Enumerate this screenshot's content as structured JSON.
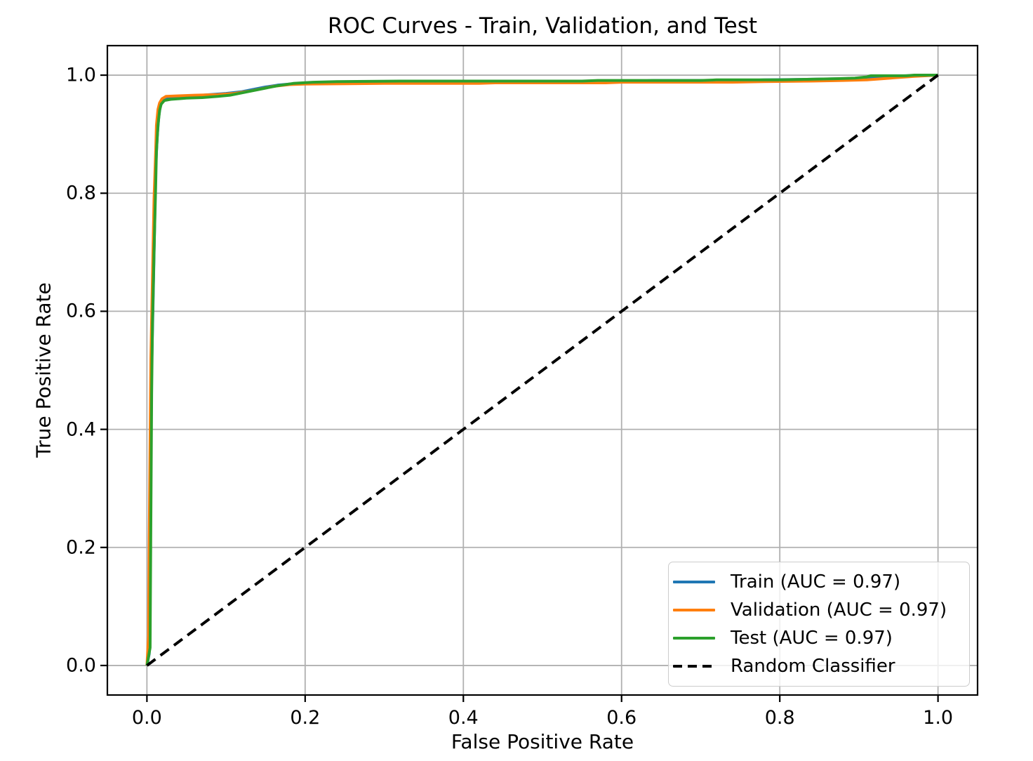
{
  "figure": {
    "background": "#ffffff",
    "title": "ROC Curves - Train, Validation, and Test"
  },
  "chart_data": {
    "type": "line",
    "title": "ROC Curves - Train, Validation, and Test",
    "xlabel": "False Positive Rate",
    "ylabel": "True Positive Rate",
    "xlim": [
      -0.05,
      1.05
    ],
    "ylim": [
      -0.05,
      1.05
    ],
    "grid": true,
    "grid_color": "#b0b0b0",
    "spine_color": "#000000",
    "tick_color": "#000000",
    "legend_position": "lower right",
    "x_ticks": [
      {
        "value": 0.0,
        "label": "0.0"
      },
      {
        "value": 0.2,
        "label": "0.2"
      },
      {
        "value": 0.4,
        "label": "0.4"
      },
      {
        "value": 0.6,
        "label": "0.6"
      },
      {
        "value": 0.8,
        "label": "0.8"
      },
      {
        "value": 1.0,
        "label": "1.0"
      }
    ],
    "y_ticks": [
      {
        "value": 0.0,
        "label": "0.0"
      },
      {
        "value": 0.2,
        "label": "0.2"
      },
      {
        "value": 0.4,
        "label": "0.4"
      },
      {
        "value": 0.6,
        "label": "0.6"
      },
      {
        "value": 0.8,
        "label": "0.8"
      },
      {
        "value": 1.0,
        "label": "1.0"
      }
    ],
    "series": [
      {
        "key": "train",
        "name": "Train (AUC = 0.97)",
        "auc": "0.97",
        "color": "#1f77b4",
        "style": "solid",
        "points": [
          [
            0,
            0
          ],
          [
            0.003,
            0.02
          ],
          [
            0.004,
            0.18
          ],
          [
            0.005,
            0.36
          ],
          [
            0.006,
            0.5
          ],
          [
            0.008,
            0.63
          ],
          [
            0.01,
            0.76
          ],
          [
            0.011,
            0.84
          ],
          [
            0.013,
            0.895
          ],
          [
            0.015,
            0.93
          ],
          [
            0.017,
            0.948
          ],
          [
            0.02,
            0.956
          ],
          [
            0.026,
            0.96
          ],
          [
            0.04,
            0.963
          ],
          [
            0.06,
            0.965
          ],
          [
            0.08,
            0.967
          ],
          [
            0.1,
            0.969
          ],
          [
            0.12,
            0.972
          ],
          [
            0.135,
            0.976
          ],
          [
            0.15,
            0.98
          ],
          [
            0.165,
            0.983
          ],
          [
            0.18,
            0.985
          ],
          [
            0.2,
            0.987
          ],
          [
            0.27,
            0.988
          ],
          [
            0.35,
            0.988
          ],
          [
            0.35,
            0.989
          ],
          [
            0.48,
            0.989
          ],
          [
            0.5,
            0.99
          ],
          [
            0.62,
            0.99
          ],
          [
            0.64,
            0.991
          ],
          [
            0.76,
            0.991
          ],
          [
            0.78,
            0.992
          ],
          [
            0.84,
            0.993
          ],
          [
            0.88,
            0.994
          ],
          [
            0.9,
            0.995
          ],
          [
            0.92,
            0.996
          ],
          [
            0.94,
            0.998
          ],
          [
            0.96,
            0.999
          ],
          [
            1,
            1
          ]
        ]
      },
      {
        "key": "validation",
        "name": "Validation (AUC = 0.97)",
        "auc": "0.97",
        "color": "#ff7f0e",
        "style": "solid",
        "points": [
          [
            0,
            0
          ],
          [
            0.002,
            0.05
          ],
          [
            0.003,
            0.22
          ],
          [
            0.004,
            0.38
          ],
          [
            0.005,
            0.52
          ],
          [
            0.007,
            0.66
          ],
          [
            0.009,
            0.79
          ],
          [
            0.011,
            0.87
          ],
          [
            0.012,
            0.915
          ],
          [
            0.014,
            0.942
          ],
          [
            0.016,
            0.953
          ],
          [
            0.019,
            0.96
          ],
          [
            0.024,
            0.964
          ],
          [
            0.04,
            0.965
          ],
          [
            0.06,
            0.966
          ],
          [
            0.09,
            0.967
          ],
          [
            0.11,
            0.969
          ],
          [
            0.13,
            0.973
          ],
          [
            0.145,
            0.977
          ],
          [
            0.16,
            0.981
          ],
          [
            0.18,
            0.984
          ],
          [
            0.2,
            0.985
          ],
          [
            0.3,
            0.986
          ],
          [
            0.42,
            0.986
          ],
          [
            0.44,
            0.987
          ],
          [
            0.58,
            0.987
          ],
          [
            0.6,
            0.988
          ],
          [
            0.74,
            0.988
          ],
          [
            0.78,
            0.989
          ],
          [
            0.84,
            0.99
          ],
          [
            0.88,
            0.991
          ],
          [
            0.91,
            0.992
          ],
          [
            0.93,
            0.994
          ],
          [
            0.95,
            0.996
          ],
          [
            0.97,
            0.998
          ],
          [
            1,
            1
          ]
        ]
      },
      {
        "key": "test",
        "name": "Test (AUC = 0.97)",
        "auc": "0.97",
        "color": "#2ca02c",
        "style": "solid",
        "points": [
          [
            0,
            0
          ],
          [
            0.004,
            0.03
          ],
          [
            0.005,
            0.25
          ],
          [
            0.006,
            0.46
          ],
          [
            0.007,
            0.58
          ],
          [
            0.009,
            0.7
          ],
          [
            0.011,
            0.81
          ],
          [
            0.012,
            0.87
          ],
          [
            0.014,
            0.915
          ],
          [
            0.016,
            0.94
          ],
          [
            0.018,
            0.951
          ],
          [
            0.022,
            0.957
          ],
          [
            0.03,
            0.959
          ],
          [
            0.05,
            0.961
          ],
          [
            0.07,
            0.962
          ],
          [
            0.09,
            0.964
          ],
          [
            0.105,
            0.966
          ],
          [
            0.12,
            0.97
          ],
          [
            0.135,
            0.974
          ],
          [
            0.15,
            0.978
          ],
          [
            0.165,
            0.982
          ],
          [
            0.185,
            0.986
          ],
          [
            0.21,
            0.988
          ],
          [
            0.24,
            0.989
          ],
          [
            0.32,
            0.99
          ],
          [
            0.45,
            0.99
          ],
          [
            0.55,
            0.99
          ],
          [
            0.57,
            0.991
          ],
          [
            0.7,
            0.991
          ],
          [
            0.72,
            0.992
          ],
          [
            0.8,
            0.992
          ],
          [
            0.84,
            0.993
          ],
          [
            0.87,
            0.994
          ],
          [
            0.895,
            0.995
          ],
          [
            0.91,
            0.997
          ],
          [
            0.915,
            0.999
          ],
          [
            0.96,
            0.999
          ],
          [
            0.97,
            1.0
          ],
          [
            1,
            1
          ]
        ]
      },
      {
        "key": "random-classifier",
        "name": "Random Classifier",
        "color": "#000000",
        "style": "dashed",
        "points": [
          [
            0,
            0
          ],
          [
            1,
            1
          ]
        ]
      }
    ]
  }
}
